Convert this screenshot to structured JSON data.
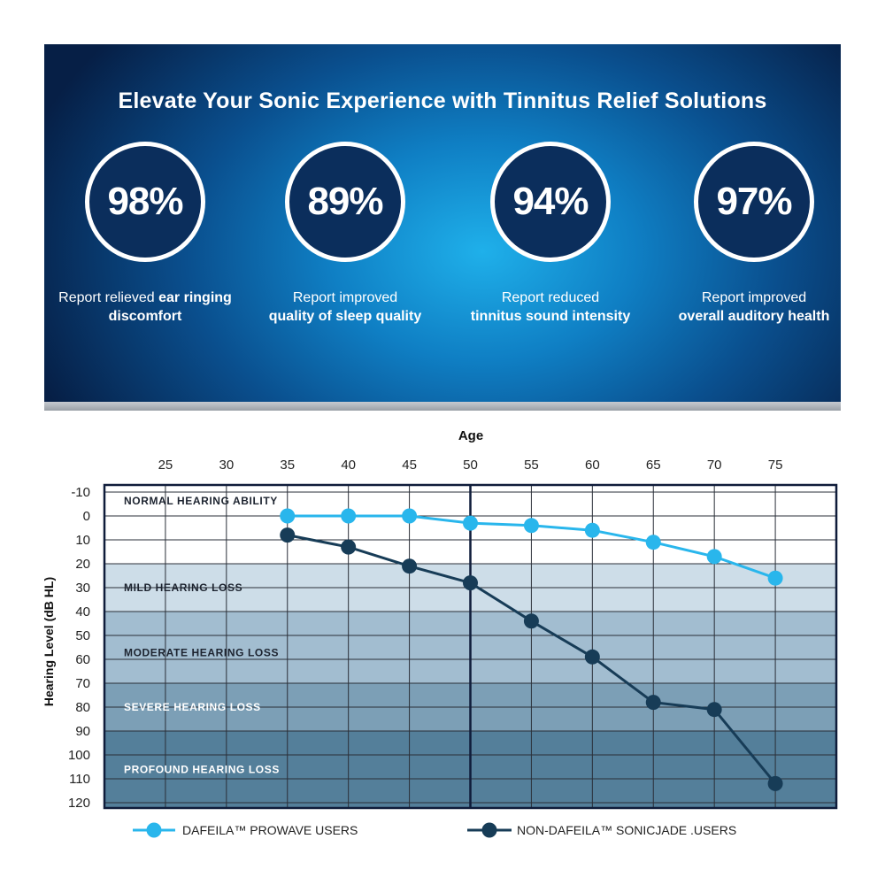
{
  "banner": {
    "title": "Elevate Your Sonic Experience with Tinnitus Relief Solutions",
    "stats": [
      {
        "value": "98%",
        "text": "Report relieved",
        "bold": "ear ringing discomfort"
      },
      {
        "value": "89%",
        "text": "Report improved",
        "bold": "quality of sleep quality"
      },
      {
        "value": "94%",
        "text": "Report reduced",
        "bold": "tinnitus sound intensity"
      },
      {
        "value": "97%",
        "text": "Report improved",
        "bold": "overall auditory health"
      }
    ]
  },
  "colors": {
    "series_light": "#29b6ec",
    "series_dark": "#173c57",
    "band_normal": "#ffffff",
    "band_mild": "#cddde8",
    "band_moderate": "#a2bdd0",
    "band_severe": "#7c9fb6",
    "band_profound": "#547f9a"
  },
  "chart_data": {
    "type": "line",
    "title": "",
    "xlabel": "Age",
    "ylabel": "Hearing Level (dB HL)",
    "x_ticks": [
      25,
      30,
      35,
      40,
      45,
      50,
      55,
      60,
      65,
      70,
      75
    ],
    "y_ticks": [
      -10,
      0,
      10,
      20,
      30,
      40,
      50,
      60,
      70,
      80,
      90,
      100,
      110,
      120
    ],
    "xlim": [
      20,
      80
    ],
    "ylim": [
      -10,
      120
    ],
    "y_inverted": true,
    "grid": true,
    "legend_position": "bottom",
    "reference_line_x": 50,
    "bands": [
      {
        "label": "NORMAL HEARING ABILITY",
        "from": -10,
        "to": 20
      },
      {
        "label": "MILD HEARING LOSS",
        "from": 20,
        "to": 40
      },
      {
        "label": "MODERATE HEARING LOSS",
        "from": 40,
        "to": 70
      },
      {
        "label": "SEVERE HEARING LOSS",
        "from": 70,
        "to": 90
      },
      {
        "label": "PROFOUND HEARING LOSS",
        "from": 90,
        "to": 120
      }
    ],
    "series": [
      {
        "name": "DAFEILA™ PROWAVE USERS",
        "x": [
          35,
          40,
          45,
          50,
          55,
          60,
          65,
          70,
          75
        ],
        "values": [
          0,
          0,
          0,
          3,
          4,
          6,
          11,
          17,
          26
        ]
      },
      {
        "name": "NON-DAFEILA™ SONICJADE .USERS",
        "x": [
          35,
          40,
          45,
          50,
          55,
          60,
          65,
          70,
          75
        ],
        "values": [
          8,
          13,
          21,
          28,
          44,
          59,
          78,
          81,
          112
        ]
      }
    ]
  }
}
